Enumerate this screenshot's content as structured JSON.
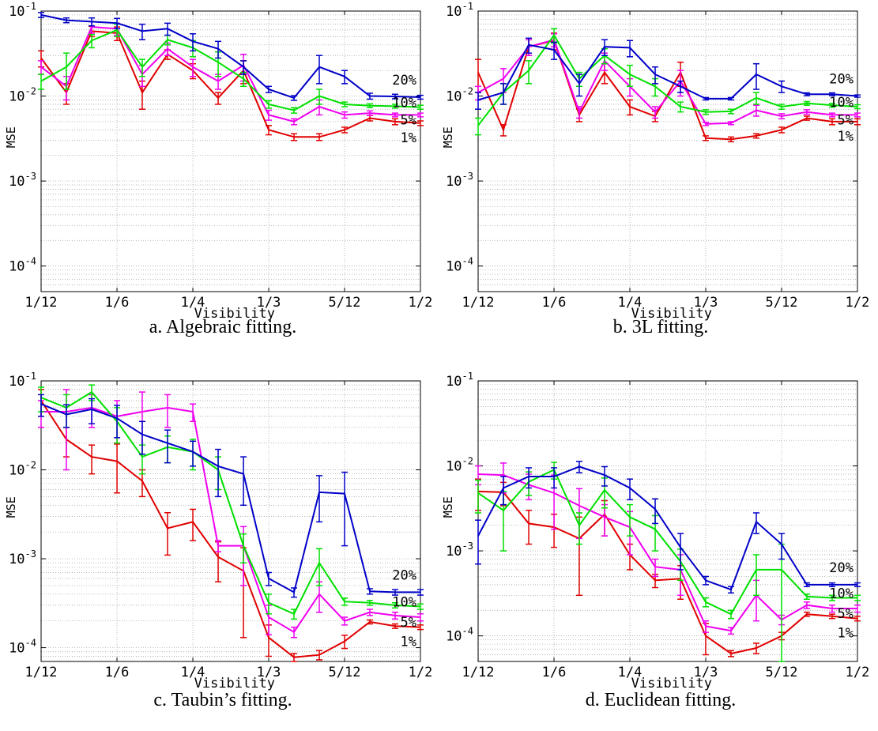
{
  "figure": {
    "captions": [
      "a. Algebraic fitting.",
      "b. 3L fitting.",
      "c. Taubin’s fitting.",
      "d. Euclidean fitting."
    ]
  },
  "colors": {
    "20%": "#0000c8",
    "10%": "#00e000",
    "5%": "#f000f0",
    "1%": "#e00000"
  },
  "chart_data": [
    {
      "type": "line",
      "caption": "a. Algebraic fitting.",
      "xlabel": "Visibility",
      "ylabel": "MSE",
      "yscale": "log",
      "ylim": [
        5e-05,
        0.1
      ],
      "xlim": [
        0.0833,
        0.5
      ],
      "xticks": [
        "1/12",
        "1/6",
        "1/4",
        "1/3",
        "5/12",
        "1/2"
      ],
      "yticks": [
        "10^-4",
        "10^-3",
        "10^-2",
        "10^-1"
      ],
      "grid": true,
      "x": [
        0.0833,
        0.1111,
        0.1389,
        0.1667,
        0.1944,
        0.2222,
        0.25,
        0.2778,
        0.3056,
        0.3333,
        0.3611,
        0.3889,
        0.4167,
        0.4444,
        0.4722,
        0.5
      ],
      "series": [
        {
          "name": "20%",
          "values": [
            0.09,
            0.078,
            0.075,
            0.072,
            0.058,
            0.062,
            0.044,
            0.036,
            0.022,
            0.012,
            0.0095,
            0.022,
            0.017,
            0.01,
            0.0099,
            0.0097
          ],
          "errors": [
            0.006,
            0.005,
            0.008,
            0.01,
            0.012,
            0.01,
            0.01,
            0.008,
            0.004,
            0.001,
            0.0006,
            0.008,
            0.003,
            0.0008,
            0.0006,
            0.0005
          ]
        },
        {
          "name": "10%",
          "values": [
            0.015,
            0.022,
            0.045,
            0.06,
            0.022,
            0.046,
            0.037,
            0.025,
            0.016,
            0.008,
            0.0068,
            0.01,
            0.008,
            0.0077,
            0.0076,
            0.0074
          ],
          "errors": [
            0.003,
            0.01,
            0.008,
            0.01,
            0.005,
            0.006,
            0.008,
            0.008,
            0.003,
            0.0008,
            0.0005,
            0.002,
            0.0005,
            0.0004,
            0.0004,
            0.0004
          ]
        },
        {
          "name": "5%",
          "values": [
            0.022,
            0.013,
            0.065,
            0.062,
            0.018,
            0.036,
            0.022,
            0.015,
            0.023,
            0.006,
            0.005,
            0.0075,
            0.006,
            0.0063,
            0.006,
            0.006
          ],
          "errors": [
            0.004,
            0.004,
            0.01,
            0.01,
            0.005,
            0.006,
            0.005,
            0.003,
            0.008,
            0.0008,
            0.0004,
            0.0015,
            0.0005,
            0.0004,
            0.0003,
            0.0003
          ]
        },
        {
          "name": "1%",
          "values": [
            0.028,
            0.011,
            0.058,
            0.055,
            0.011,
            0.031,
            0.02,
            0.0095,
            0.02,
            0.004,
            0.0033,
            0.0033,
            0.004,
            0.0055,
            0.005,
            0.0048
          ],
          "errors": [
            0.006,
            0.003,
            0.008,
            0.01,
            0.004,
            0.004,
            0.004,
            0.0015,
            0.006,
            0.0005,
            0.0003,
            0.0003,
            0.0003,
            0.0004,
            0.0004,
            0.0003
          ]
        }
      ]
    },
    {
      "type": "line",
      "caption": "b. 3L fitting.",
      "xlabel": "Visibility",
      "ylabel": "MSE",
      "yscale": "log",
      "ylim": [
        5e-05,
        0.1
      ],
      "xlim": [
        0.0833,
        0.5
      ],
      "xticks": [
        "1/12",
        "1/6",
        "1/4",
        "1/3",
        "5/12",
        "1/2"
      ],
      "yticks": [
        "10^-4",
        "10^-3",
        "10^-2",
        "10^-1"
      ],
      "grid": true,
      "x": [
        0.0833,
        0.1111,
        0.1389,
        0.1667,
        0.1944,
        0.2222,
        0.25,
        0.2778,
        0.3056,
        0.3333,
        0.3611,
        0.3889,
        0.4167,
        0.4444,
        0.4722,
        0.5
      ],
      "series": [
        {
          "name": "20%",
          "values": [
            0.009,
            0.011,
            0.04,
            0.035,
            0.014,
            0.038,
            0.037,
            0.018,
            0.013,
            0.0093,
            0.0093,
            0.018,
            0.013,
            0.0105,
            0.0105,
            0.01
          ],
          "errors": [
            0.002,
            0.003,
            0.008,
            0.008,
            0.004,
            0.008,
            0.008,
            0.004,
            0.002,
            0.0003,
            0.0003,
            0.006,
            0.002,
            0.0004,
            0.0004,
            0.0003
          ]
        },
        {
          "name": "10%",
          "values": [
            0.0045,
            0.011,
            0.02,
            0.052,
            0.016,
            0.03,
            0.018,
            0.013,
            0.0075,
            0.0065,
            0.0066,
            0.0095,
            0.0075,
            0.0082,
            0.0078,
            0.0075
          ],
          "errors": [
            0.001,
            0.003,
            0.006,
            0.01,
            0.003,
            0.006,
            0.005,
            0.003,
            0.001,
            0.0004,
            0.0004,
            0.0015,
            0.0005,
            0.0004,
            0.0004,
            0.0004
          ]
        },
        {
          "name": "5%",
          "values": [
            0.011,
            0.016,
            0.038,
            0.046,
            0.0065,
            0.026,
            0.013,
            0.0065,
            0.015,
            0.0047,
            0.0048,
            0.0068,
            0.0058,
            0.0065,
            0.006,
            0.006
          ],
          "errors": [
            0.002,
            0.005,
            0.008,
            0.008,
            0.001,
            0.006,
            0.003,
            0.001,
            0.005,
            0.0002,
            0.0002,
            0.001,
            0.0004,
            0.0004,
            0.0003,
            0.0003
          ]
        },
        {
          "name": "1%",
          "values": [
            0.019,
            0.004,
            0.038,
            0.045,
            0.006,
            0.019,
            0.0075,
            0.0058,
            0.019,
            0.0032,
            0.0031,
            0.0034,
            0.004,
            0.0055,
            0.005,
            0.005
          ],
          "errors": [
            0.008,
            0.0006,
            0.008,
            0.01,
            0.001,
            0.005,
            0.0015,
            0.0008,
            0.006,
            0.0002,
            0.0002,
            0.0002,
            0.0003,
            0.0003,
            0.0004,
            0.0004
          ]
        }
      ]
    },
    {
      "type": "line",
      "caption": "c. Taubin’s fitting.",
      "xlabel": "Visibility",
      "ylabel": "MSE",
      "yscale": "log",
      "ylim": [
        7e-05,
        0.1
      ],
      "xlim": [
        0.0833,
        0.5
      ],
      "xticks": [
        "1/12",
        "1/6",
        "1/4",
        "1/3",
        "5/12",
        "1/2"
      ],
      "yticks": [
        "10^-4",
        "10^-3",
        "10^-2",
        "10^-1"
      ],
      "grid": true,
      "x": [
        0.0833,
        0.1111,
        0.1389,
        0.1667,
        0.1944,
        0.2222,
        0.25,
        0.2778,
        0.3056,
        0.3333,
        0.3611,
        0.3889,
        0.4167,
        0.4444,
        0.4722,
        0.5
      ],
      "series": [
        {
          "name": "20%",
          "values": [
            0.055,
            0.042,
            0.048,
            0.038,
            0.025,
            0.02,
            0.016,
            0.011,
            0.009,
            0.0006,
            0.00042,
            0.0056,
            0.0054,
            0.00043,
            0.00042,
            0.00042
          ],
          "errors": [
            0.015,
            0.012,
            0.015,
            0.015,
            0.01,
            0.008,
            0.005,
            0.006,
            0.005,
            0.0001,
            5e-05,
            0.003,
            0.004,
            3e-05,
            3e-05,
            3e-05
          ]
        },
        {
          "name": "10%",
          "values": [
            0.065,
            0.05,
            0.075,
            0.035,
            0.014,
            0.018,
            0.016,
            0.01,
            0.0014,
            0.00032,
            0.00024,
            0.0009,
            0.00033,
            0.00032,
            0.0003,
            0.00029
          ],
          "errors": [
            0.02,
            0.02,
            0.015,
            0.015,
            0.005,
            0.006,
            0.006,
            0.004,
            0.0005,
            8e-05,
            3e-05,
            0.0004,
            3e-05,
            2e-05,
            2e-05,
            2e-05
          ]
        },
        {
          "name": "5%",
          "values": [
            0.045,
            0.045,
            0.05,
            0.04,
            0.045,
            0.05,
            0.045,
            0.0014,
            0.0014,
            0.00022,
            0.00015,
            0.0004,
            0.0002,
            0.00025,
            0.00023,
            0.00022
          ],
          "errors": [
            0.015,
            0.035,
            0.02,
            0.02,
            0.03,
            0.02,
            0.01,
            0.0002,
            0.0009,
            8e-05,
            2e-05,
            0.00015,
            2e-05,
            2e-05,
            2e-05,
            2e-05
          ]
        },
        {
          "name": "1%",
          "values": [
            0.06,
            0.022,
            0.014,
            0.0125,
            0.0075,
            0.0022,
            0.0026,
            0.00105,
            0.00073,
            0.00013,
            7.8e-05,
            8.3e-05,
            0.000118,
            0.000195,
            0.000175,
            0.00017
          ],
          "errors": [
            0.02,
            0.008,
            0.005,
            0.007,
            0.0025,
            0.0011,
            0.001,
            0.0005,
            0.0006,
            5e-05,
            8e-06,
            1e-05,
            2e-05,
            1e-05,
            1e-05,
            1e-05
          ]
        }
      ]
    },
    {
      "type": "line",
      "caption": "d. Euclidean fitting.",
      "xlabel": "Visibility",
      "ylabel": "MSE",
      "yscale": "log",
      "ylim": [
        5e-05,
        0.1
      ],
      "xlim": [
        0.0833,
        0.5
      ],
      "xticks": [
        "1/12",
        "1/6",
        "1/4",
        "1/3",
        "5/12",
        "1/2"
      ],
      "yticks": [
        "10^-4",
        "10^-3",
        "10^-2",
        "10^-1"
      ],
      "grid": true,
      "x": [
        0.0833,
        0.1111,
        0.1389,
        0.1667,
        0.1944,
        0.2222,
        0.25,
        0.2778,
        0.3056,
        0.3333,
        0.3611,
        0.3889,
        0.4167,
        0.4444,
        0.4722,
        0.5
      ],
      "series": [
        {
          "name": "20%",
          "values": [
            0.0015,
            0.0055,
            0.0075,
            0.0075,
            0.0098,
            0.0078,
            0.0055,
            0.0031,
            0.0011,
            0.00045,
            0.00035,
            0.0022,
            0.0012,
            0.0004,
            0.0004,
            0.0004
          ],
          "errors": [
            0.0008,
            0.002,
            0.002,
            0.002,
            0.0015,
            0.002,
            0.0015,
            0.001,
            0.0005,
            5e-05,
            3e-05,
            0.0006,
            0.0004,
            2e-05,
            2e-05,
            2e-05
          ]
        },
        {
          "name": "10%",
          "values": [
            0.0048,
            0.003,
            0.0065,
            0.009,
            0.002,
            0.0052,
            0.0025,
            0.0018,
            0.00075,
            0.00025,
            0.00018,
            0.0006,
            0.0006,
            0.00029,
            0.00028,
            0.00028
          ],
          "errors": [
            0.002,
            0.002,
            0.002,
            0.002,
            0.0008,
            0.002,
            0.001,
            0.0008,
            0.0003,
            3e-05,
            2e-05,
            0.0003,
            0.0006,
            2e-05,
            2e-05,
            2e-05
          ]
        },
        {
          "name": "5%",
          "values": [
            0.008,
            0.0078,
            0.006,
            0.0048,
            0.0034,
            0.0025,
            0.0019,
            0.00065,
            0.0006,
            0.00013,
            0.000115,
            0.0003,
            0.000155,
            0.00023,
            0.00021,
            0.00021
          ],
          "errors": [
            0.002,
            0.003,
            0.002,
            0.003,
            0.002,
            0.001,
            0.001,
            0.00015,
            0.0003,
            2e-05,
            1e-05,
            0.00015,
            2e-05,
            2e-05,
            2e-05,
            2e-05
          ]
        },
        {
          "name": "1%",
          "values": [
            0.005,
            0.0049,
            0.0021,
            0.0019,
            0.0014,
            0.0027,
            0.0009,
            0.00045,
            0.00047,
            0.0001,
            6.2e-05,
            7.2e-05,
            0.0001,
            0.00018,
            0.00017,
            0.00016
          ],
          "errors": [
            0.002,
            0.0015,
            0.0009,
            0.0008,
            0.0011,
            0.0012,
            0.0003,
            8e-05,
            0.0002,
            4e-05,
            5e-06,
            1e-05,
            1e-05,
            1e-05,
            1e-05,
            1e-05
          ]
        }
      ]
    }
  ]
}
